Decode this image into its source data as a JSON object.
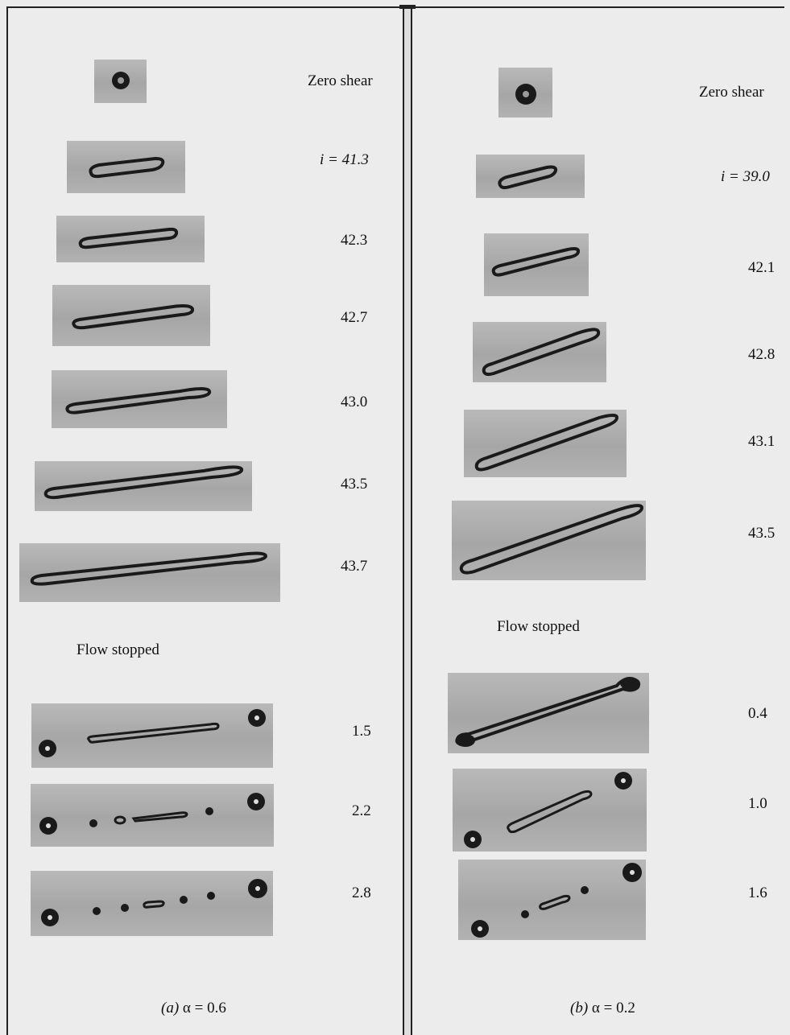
{
  "panel_a": {
    "title": "Zero shear",
    "shear_labels": [
      "i = 41.3",
      "42.3",
      "42.7",
      "43.0",
      "43.5",
      "43.7"
    ],
    "flow_stopped_label": "Flow stopped",
    "relax_labels": [
      "1.5",
      "2.2",
      "2.8"
    ],
    "caption_prefix": "(a)",
    "caption_value": "α = 0.6"
  },
  "panel_b": {
    "title": "Zero shear",
    "shear_labels": [
      "i = 39.0",
      "42.1",
      "42.8",
      "43.1",
      "43.5"
    ],
    "flow_stopped_label": "Flow stopped",
    "relax_labels": [
      "0.4",
      "1.0",
      "1.6"
    ],
    "caption_prefix": "(b)",
    "caption_value": "α = 0.2"
  },
  "colors": {
    "background": "#ececec",
    "drop": "#1a1a1a",
    "frame": "#b0b0b0"
  }
}
